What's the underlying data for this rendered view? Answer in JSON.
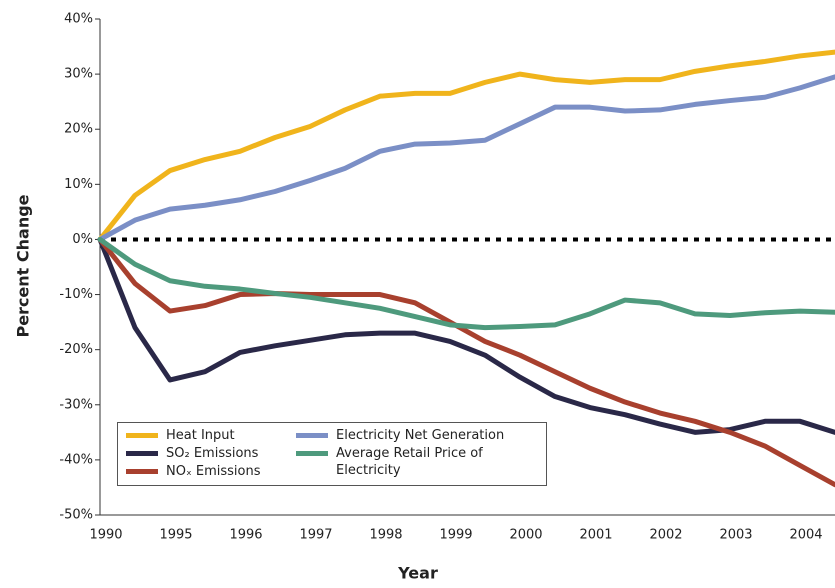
{
  "chart_data": {
    "type": "line",
    "x_label": "Year",
    "y_label": "Percent Change",
    "categories": [
      "1990",
      null,
      "1995",
      null,
      "1996",
      null,
      "1997",
      null,
      "1998",
      null,
      "1999",
      null,
      "2000",
      null,
      "2001",
      null,
      "2002",
      null,
      "2003",
      null,
      "2004",
      null
    ],
    "series": [
      {
        "name": "Heat Input",
        "color": "#f0b41c",
        "values": [
          0,
          8,
          12.5,
          14.5,
          16,
          18.5,
          20.5,
          23.5,
          26,
          26.5,
          26.5,
          28.5,
          30,
          29,
          28.5,
          29,
          29,
          30.5,
          31.5,
          32.3,
          33.3,
          34
        ]
      },
      {
        "name": "SO₂ Emissions",
        "color": "#2a2848",
        "values": [
          0,
          -16,
          -25.5,
          -24,
          -20.5,
          -19.3,
          -18.3,
          -17.3,
          -17,
          -17,
          -18.5,
          -21,
          -25,
          -28.5,
          -30.5,
          -31.8,
          -33.5,
          -35,
          -34.5,
          -33,
          -33,
          -35
        ]
      },
      {
        "name": "NOₓ Emissions",
        "color": "#a8402e",
        "values": [
          0,
          -8,
          -13,
          -12,
          -10,
          -9.8,
          -10,
          -10,
          -10,
          -11.5,
          -15,
          -18.5,
          -21,
          -24,
          -27,
          -29.5,
          -31.5,
          -33,
          -35,
          -37.5,
          -41,
          -44.5
        ]
      },
      {
        "name": "Electricity Net Generation",
        "color": "#7b8fc6",
        "values": [
          0,
          3.5,
          5.5,
          6.2,
          7.2,
          8.7,
          10.7,
          12.9,
          16,
          17.3,
          17.5,
          18,
          21,
          24,
          24,
          23.3,
          23.5,
          24.5,
          25.2,
          25.8,
          27.5,
          29.5
        ]
      },
      {
        "name": "Average Retail Price of Electricity",
        "color": "#4e9a7d",
        "values": [
          0,
          -4.5,
          -7.5,
          -8.5,
          -9,
          -9.8,
          -10.5,
          -11.5,
          -12.5,
          -14,
          -15.5,
          -16,
          -15.8,
          -15.5,
          -13.5,
          -11,
          -11.5,
          -13.5,
          -13.8,
          -13.3,
          -13,
          -13.2
        ]
      }
    ],
    "ylim": [
      -50,
      40
    ],
    "yticks": [
      {
        "value": -50,
        "label": "-50%"
      },
      {
        "value": -40,
        "label": "-40%"
      },
      {
        "value": -30,
        "label": "-30%"
      },
      {
        "value": -20,
        "label": "-20%"
      },
      {
        "value": -10,
        "label": "-10%"
      },
      {
        "value": 0,
        "label": "0%"
      },
      {
        "value": 10,
        "label": "10%"
      },
      {
        "value": 20,
        "label": "20%"
      },
      {
        "value": 30,
        "label": "30%"
      },
      {
        "value": 40,
        "label": "40%"
      }
    ],
    "hline": 0,
    "legend": "lower left"
  }
}
